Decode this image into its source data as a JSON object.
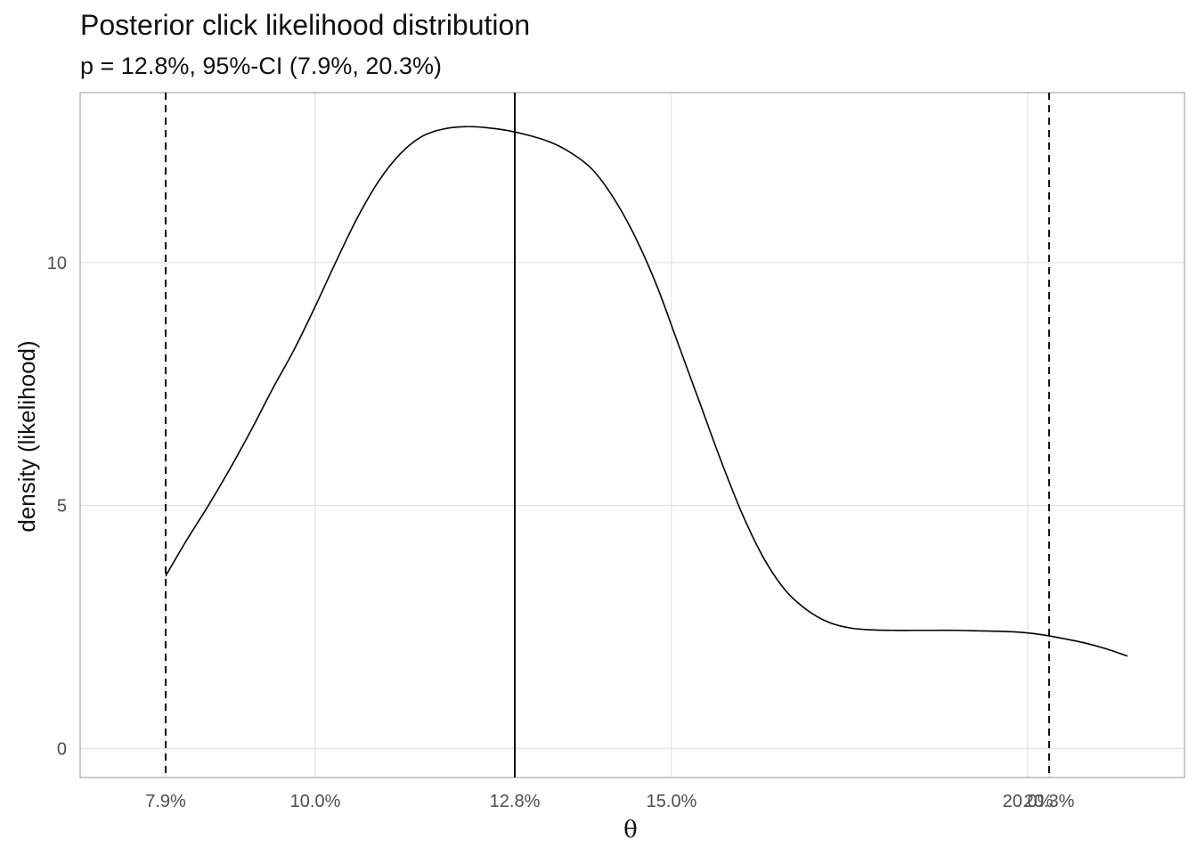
{
  "chart_data": {
    "type": "line",
    "title": "Posterior click likelihood distribution",
    "subtitle": "p = 12.8%, 95%-CI (7.9%, 20.3%)",
    "xlabel": "θ",
    "ylabel": "density (likelihood)",
    "xlim": [
      0.067,
      0.222
    ],
    "ylim": [
      -0.6,
      13.5
    ],
    "x_scale": "percent",
    "grid": true,
    "x_ticks": [
      0.079,
      0.1,
      0.128,
      0.15,
      0.2,
      0.203
    ],
    "x_tick_labels": [
      "7.9%",
      "10.0%",
      "12.8%",
      "15.0%",
      "20.0%",
      "20.3%"
    ],
    "y_ticks": [
      0,
      5,
      10
    ],
    "y_tick_labels": [
      "0",
      "5",
      "10"
    ],
    "series": [
      {
        "x": [
          0.079,
          0.082,
          0.085,
          0.088,
          0.091,
          0.094,
          0.097,
          0.1,
          0.103,
          0.106,
          0.109,
          0.112,
          0.115,
          0.118,
          0.121,
          0.124,
          0.127,
          0.13,
          0.133,
          0.136,
          0.139,
          0.142,
          0.145,
          0.148,
          0.151,
          0.154,
          0.157,
          0.16,
          0.163,
          0.166,
          0.169,
          0.172,
          0.175,
          0.178,
          0.181,
          0.184,
          0.187,
          0.19,
          0.193,
          0.196,
          0.199,
          0.202,
          0.205,
          0.208,
          0.211,
          0.214
        ],
        "y": [
          3.55,
          4.3,
          5.0,
          5.75,
          6.55,
          7.4,
          8.2,
          9.1,
          10.05,
          10.95,
          11.7,
          12.25,
          12.6,
          12.75,
          12.8,
          12.78,
          12.72,
          12.62,
          12.48,
          12.25,
          11.9,
          11.3,
          10.5,
          9.5,
          8.3,
          7.1,
          5.9,
          4.8,
          3.9,
          3.25,
          2.85,
          2.6,
          2.48,
          2.44,
          2.43,
          2.43,
          2.43,
          2.43,
          2.42,
          2.41,
          2.39,
          2.34,
          2.26,
          2.17,
          2.05,
          1.9
        ]
      }
    ],
    "reference_lines": [
      {
        "x": 0.128,
        "style": "solid"
      },
      {
        "x": 0.079,
        "style": "dashed"
      },
      {
        "x": 0.203,
        "style": "dashed"
      }
    ]
  }
}
